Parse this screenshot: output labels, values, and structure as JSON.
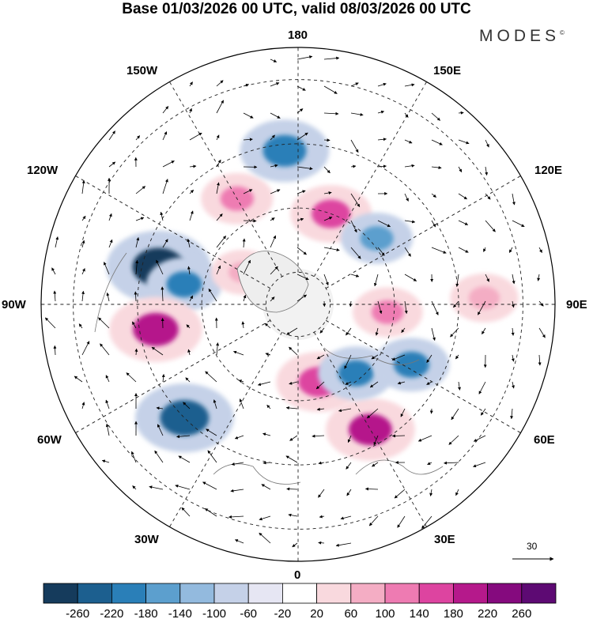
{
  "title": "Base 01/03/2026 00 UTC, valid 08/03/2026 00 UTC",
  "brand": "MODES",
  "brand_mark": "©",
  "longitude_labels": {
    "top": "180",
    "top_left": "150W",
    "top_right": "150E",
    "upper_left": "120W",
    "upper_right": "120E",
    "left": "90W",
    "right": "90E",
    "lower_left": "60W",
    "lower_right": "60E",
    "bottom_left": "30W",
    "bottom_right": "30E",
    "bottom": "0"
  },
  "reference_vector": {
    "value": "30"
  },
  "colorbar": {
    "labels": [
      "-260",
      "-220",
      "-180",
      "-140",
      "-100",
      "-60",
      "-20",
      "20",
      "60",
      "100",
      "140",
      "180",
      "220",
      "260"
    ],
    "colors": [
      "#153b5c",
      "#1c5f8f",
      "#2a7fb8",
      "#5c9fce",
      "#93bade",
      "#c5d1e8",
      "#e6e6f3",
      "#ffffff",
      "#f9d9de",
      "#f4adc4",
      "#ee7bb2",
      "#dd44a0",
      "#b5198b",
      "#850a7e",
      "#5d0a73"
    ]
  },
  "anomalies": [
    {
      "lon": -105,
      "lat": 45,
      "value": -300,
      "color": "#153b5c"
    },
    {
      "lon": -100,
      "lat": 54,
      "value": -150,
      "color": "#2a7fb8"
    },
    {
      "lon": -80,
      "lat": 45,
      "value": 240,
      "color": "#b5198b"
    },
    {
      "lon": -45,
      "lat": 40,
      "value": -270,
      "color": "#1c5f8f"
    },
    {
      "lon": -150,
      "lat": 52,
      "value": 130,
      "color": "#ee7bb2"
    },
    {
      "lon": -175,
      "lat": 42,
      "value": -220,
      "color": "#2a7fb8"
    },
    {
      "lon": 160,
      "lat": 60,
      "value": 180,
      "color": "#dd44a0"
    },
    {
      "lon": 130,
      "lat": 58,
      "value": -130,
      "color": "#5c9fce"
    },
    {
      "lon": 15,
      "lat": 65,
      "value": 200,
      "color": "#dd44a0"
    },
    {
      "lon": 30,
      "lat": 45,
      "value": 220,
      "color": "#b5198b"
    },
    {
      "lon": 40,
      "lat": 62,
      "value": -150,
      "color": "#2a7fb8"
    },
    {
      "lon": 62,
      "lat": 50,
      "value": -150,
      "color": "#2a7fb8"
    },
    {
      "lon": 85,
      "lat": 62,
      "value": 120,
      "color": "#ee7bb2"
    },
    {
      "lon": 92,
      "lat": 32,
      "value": 110,
      "color": "#f4adc4"
    },
    {
      "lon": -120,
      "lat": 70,
      "value": 80,
      "color": "#f4adc4"
    }
  ]
}
